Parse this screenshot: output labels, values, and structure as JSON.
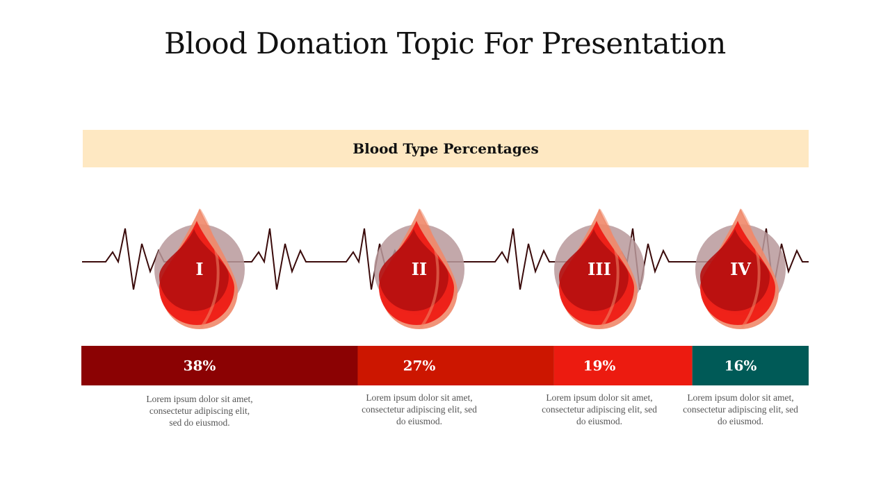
{
  "title": "Blood Donation Topic For Presentation",
  "colors": {
    "banner_bg": "#fee8c2",
    "heartbeat_line": "#3a0a0a",
    "circle": "#b8999b",
    "drop_dark": "#b5100f",
    "drop_light": "#f0886a",
    "drop_bright": "#ee1b14"
  },
  "chart_data": {
    "type": "bar",
    "title": "Blood Type Percentages",
    "orientation": "horizontal-stacked",
    "categories": [
      "I",
      "II",
      "III",
      "IV"
    ],
    "values": [
      38,
      27,
      19,
      16
    ],
    "labels": [
      "38%",
      "27%",
      "19%",
      "16%"
    ],
    "colors": [
      "#8b0203",
      "#cc1600",
      "#ec1b10",
      "#005a57"
    ],
    "descriptions": [
      "Lorem ipsum dolor sit amet, consectetur adipiscing elit, sed do eiusmod.",
      "Lorem ipsum dolor sit amet, consectetur adipiscing  elit, sed do eiusmod.",
      "Lorem ipsum dolor sit amet, consectetur adipiscing  elit, sed do eiusmod.",
      "Lorem ipsum dolor sit amet, consectetur adipiscing  elit, sed do eiusmod."
    ],
    "descriptions_lines": [
      [
        "Lorem ipsum dolor sit amet,",
        "consectetur adipiscing elit,",
        "sed do eiusmod."
      ],
      [
        "Lorem ipsum dolor sit amet,",
        "consectetur adipiscing  elit, sed",
        "do eiusmod."
      ],
      [
        "Lorem ipsum dolor sit amet,",
        "consectetur adipiscing  elit, sed",
        "do eiusmod."
      ],
      [
        "Lorem ipsum dolor sit amet,",
        "consectetur adipiscing  elit, sed",
        "do eiusmod."
      ]
    ]
  }
}
